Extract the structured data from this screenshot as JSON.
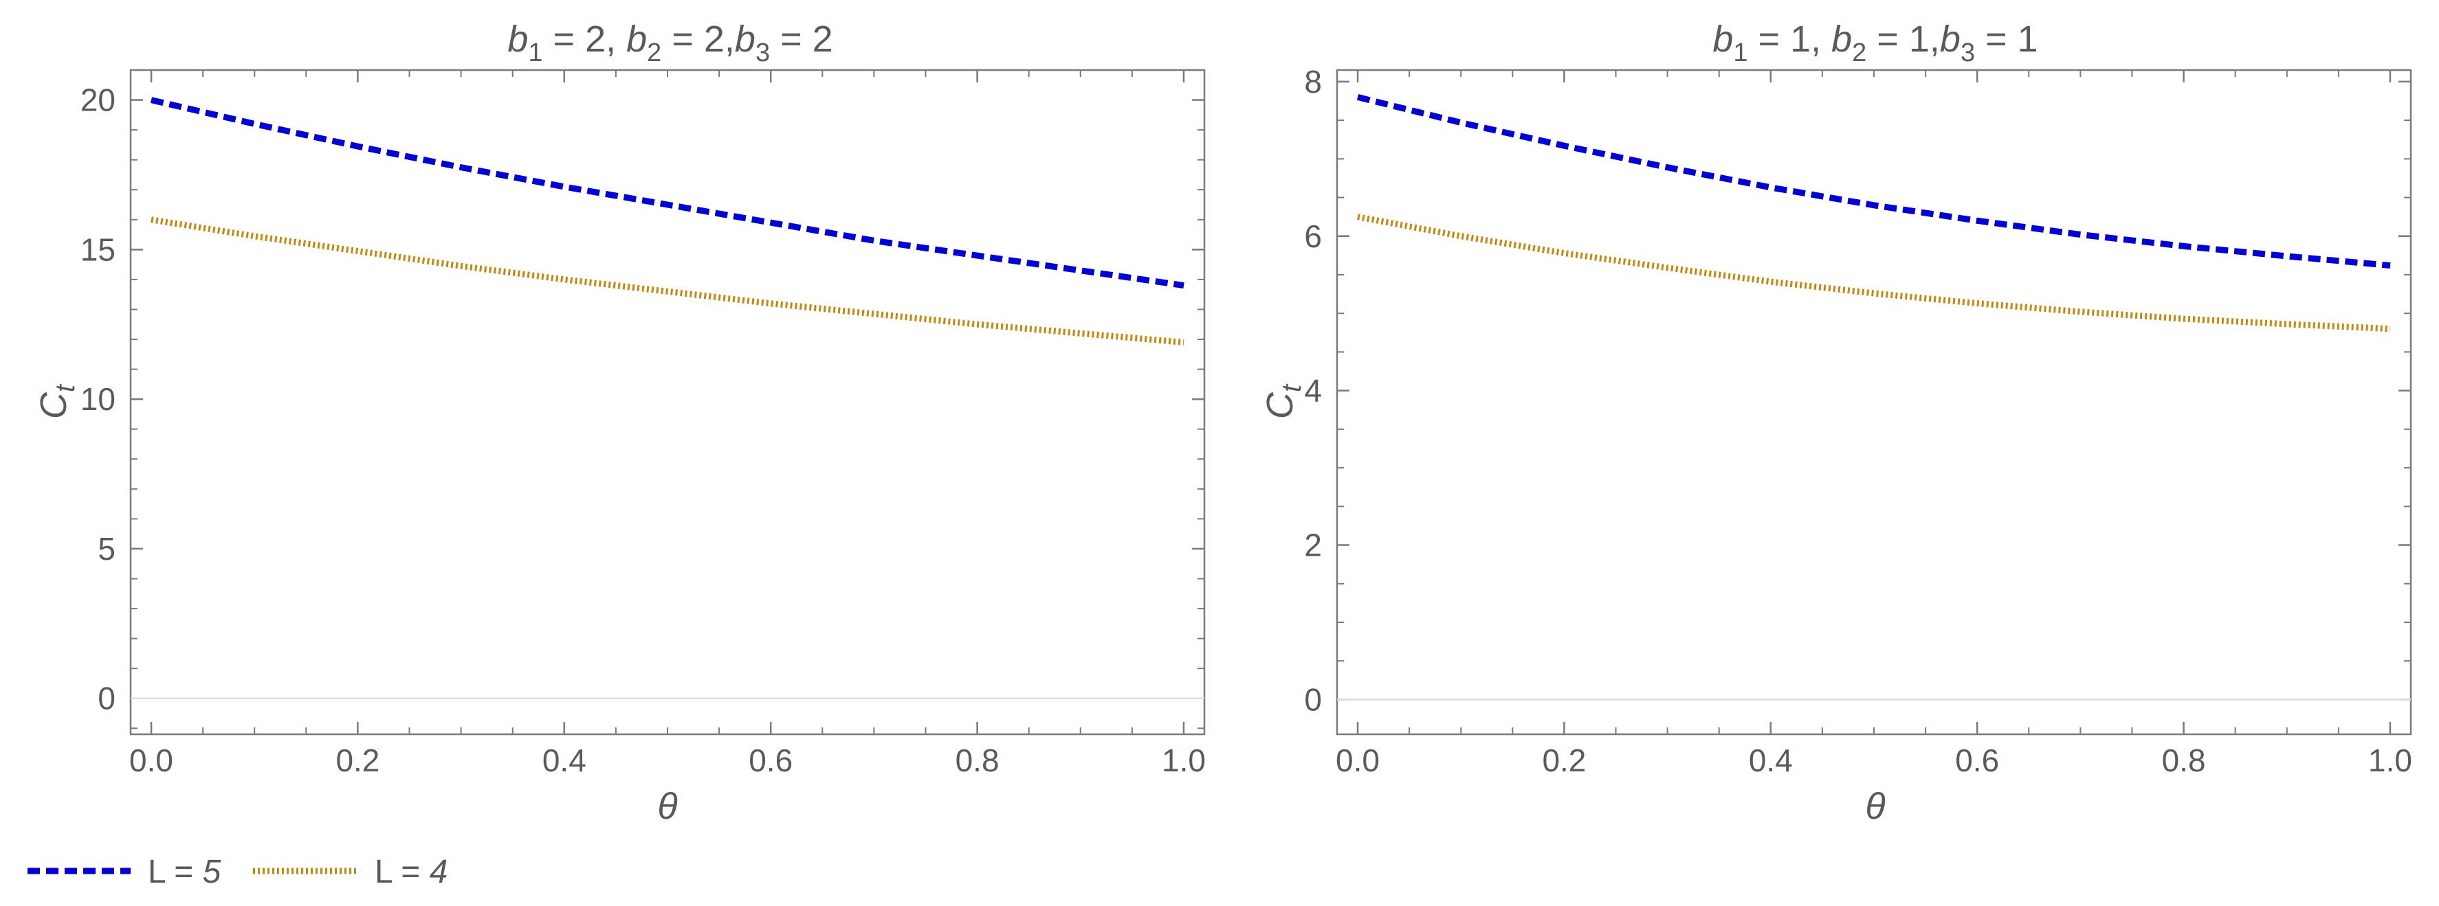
{
  "colors": {
    "series_1": "#0000dd",
    "series_2": "#c8860b",
    "frame": "#7a7a7a",
    "zero_line": "#dddddd",
    "text": "#5a5a5a"
  },
  "legend": {
    "placement": "bottom-left",
    "items": [
      {
        "label_prefix": "L = ",
        "label_value": "5",
        "style": "dashed",
        "color": "#0000dd"
      },
      {
        "label_prefix": "L = ",
        "label_value": "4",
        "style": "dotted",
        "color": "#c8860b"
      }
    ]
  },
  "chart_data": [
    {
      "type": "line",
      "title": "b1 = 2, b2 = 2,b3 = 2",
      "title_parts": [
        {
          "base": "b",
          "sub": "1",
          "tail": " = 2, "
        },
        {
          "base": "b",
          "sub": "2",
          "tail": " = 2,"
        },
        {
          "base": "b",
          "sub": "3",
          "tail": " = 2"
        }
      ],
      "xlabel": "θ",
      "ylabel_base": "C",
      "ylabel_sub": "t",
      "xlim": [
        -0.02,
        1.02
      ],
      "ylim": [
        -1.2,
        21
      ],
      "x_ticks": [
        "0.0",
        "0.2",
        "0.4",
        "0.6",
        "0.8",
        "1.0"
      ],
      "x_tick_values": [
        0,
        0.2,
        0.4,
        0.6,
        0.8,
        1.0
      ],
      "y_ticks": [
        "0",
        "5",
        "10",
        "15",
        "20"
      ],
      "y_tick_values": [
        0,
        5,
        10,
        15,
        20
      ],
      "x_minor_step": 0.05,
      "y_minor_step": 1,
      "zero_line": true,
      "grid": false,
      "x": [
        0,
        0.1,
        0.2,
        0.3,
        0.4,
        0.5,
        0.6,
        0.7,
        0.8,
        0.9,
        1.0
      ],
      "series": [
        {
          "name": "L = 5",
          "style": "dashed",
          "values": [
            20.0,
            19.2,
            18.45,
            17.75,
            17.1,
            16.5,
            15.9,
            15.3,
            14.8,
            14.3,
            13.8
          ]
        },
        {
          "name": "L = 4",
          "style": "dotted",
          "values": [
            16.0,
            15.45,
            14.95,
            14.45,
            14.0,
            13.6,
            13.2,
            12.85,
            12.5,
            12.2,
            11.9
          ]
        }
      ]
    },
    {
      "type": "line",
      "title": "b1 = 1, b2 = 1,b3 = 1",
      "title_parts": [
        {
          "base": "b",
          "sub": "1",
          "tail": " = 1, "
        },
        {
          "base": "b",
          "sub": "2",
          "tail": " = 1,"
        },
        {
          "base": "b",
          "sub": "3",
          "tail": " = 1"
        }
      ],
      "xlabel": "θ",
      "ylabel_base": "C",
      "ylabel_sub": "t",
      "xlim": [
        -0.02,
        1.02
      ],
      "ylim": [
        -0.45,
        8.15
      ],
      "x_ticks": [
        "0.0",
        "0.2",
        "0.4",
        "0.6",
        "0.8",
        "1.0"
      ],
      "x_tick_values": [
        0,
        0.2,
        0.4,
        0.6,
        0.8,
        1.0
      ],
      "y_ticks": [
        "0",
        "2",
        "4",
        "6",
        "8"
      ],
      "y_tick_values": [
        0,
        2,
        4,
        6,
        8
      ],
      "x_minor_step": 0.05,
      "y_minor_step": 0.5,
      "zero_line": true,
      "grid": false,
      "x": [
        0,
        0.1,
        0.2,
        0.3,
        0.4,
        0.5,
        0.6,
        0.7,
        0.8,
        0.9,
        1.0
      ],
      "series": [
        {
          "name": "L = 5",
          "style": "dashed",
          "values": [
            7.8,
            7.47,
            7.17,
            6.89,
            6.63,
            6.4,
            6.2,
            6.02,
            5.87,
            5.74,
            5.62
          ]
        },
        {
          "name": "L = 4",
          "style": "dotted",
          "values": [
            6.25,
            6.0,
            5.78,
            5.59,
            5.41,
            5.26,
            5.13,
            5.02,
            4.93,
            4.86,
            4.8
          ]
        }
      ]
    }
  ]
}
